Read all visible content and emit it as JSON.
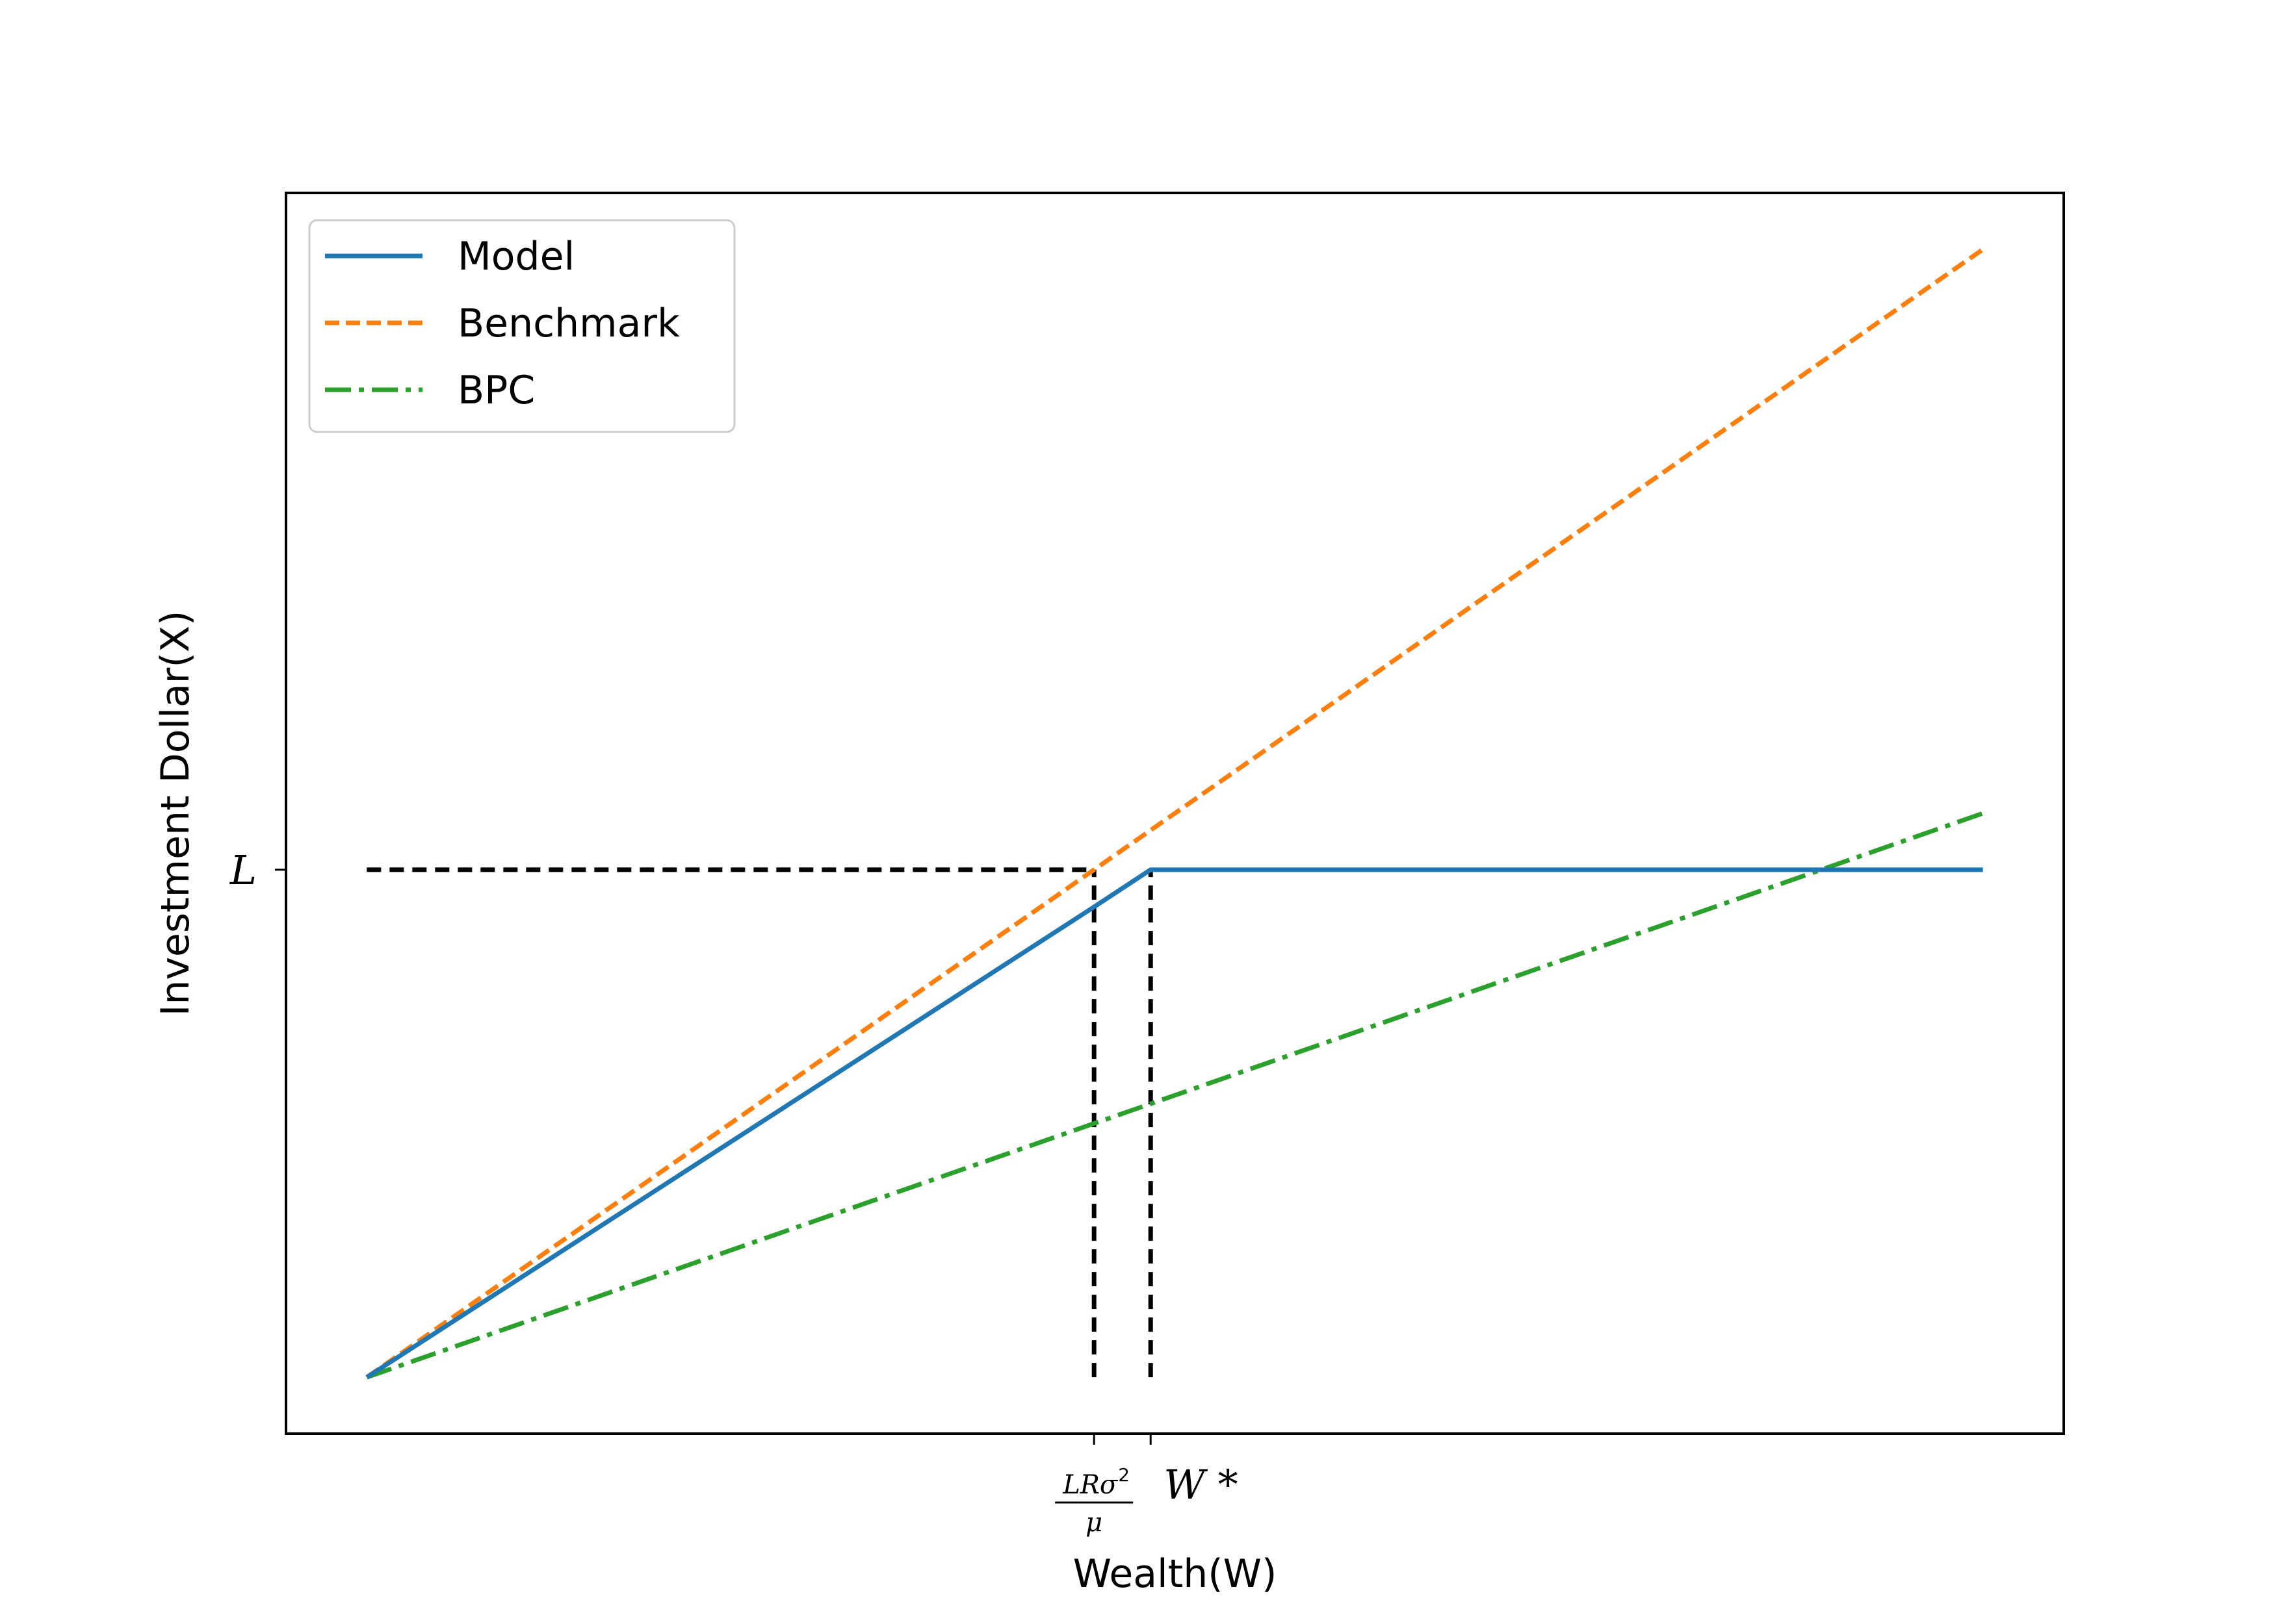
{
  "chart_data": {
    "type": "line",
    "title": "",
    "xlabel": "Wealth(W)",
    "ylabel": "Investment Dollar(X)",
    "xlim": [
      -0.05,
      1.05
    ],
    "ylim": [
      -0.05,
      1.05
    ],
    "grid": false,
    "legend_position": "top-left",
    "x_ticks": [
      {
        "value": 0.45,
        "label": "LRσ²/μ",
        "numerator": "LRσ",
        "exponent": "2",
        "denominator": "μ"
      },
      {
        "value": 0.485,
        "label": "W *"
      }
    ],
    "y_ticks": [
      {
        "value": 0.45,
        "label": "L"
      }
    ],
    "series": [
      {
        "name": "Model",
        "style": "solid",
        "color": "#1f77b4",
        "x": [
          0,
          0.45,
          0.485,
          1.0
        ],
        "y": [
          0,
          0.417,
          0.45,
          0.45
        ]
      },
      {
        "name": "Benchmark",
        "style": "dashed",
        "color": "#ff7f0e",
        "x": [
          0,
          1.0
        ],
        "y": [
          0,
          1.0
        ]
      },
      {
        "name": "BPC",
        "style": "dashdot",
        "color": "#2ca02c",
        "x": [
          0,
          1.0
        ],
        "y": [
          0,
          0.5
        ]
      }
    ],
    "reference_lines": [
      {
        "kind": "horizontal",
        "color": "#000000",
        "style": "dashed",
        "x": [
          0,
          0.45
        ],
        "y": [
          0.45,
          0.45
        ]
      },
      {
        "kind": "vertical",
        "color": "#000000",
        "style": "dashed",
        "x": [
          0.45,
          0.45
        ],
        "y": [
          0,
          0.45
        ]
      },
      {
        "kind": "vertical",
        "color": "#000000",
        "style": "dashed",
        "x": [
          0.485,
          0.485
        ],
        "y": [
          0,
          0.45
        ]
      }
    ]
  }
}
